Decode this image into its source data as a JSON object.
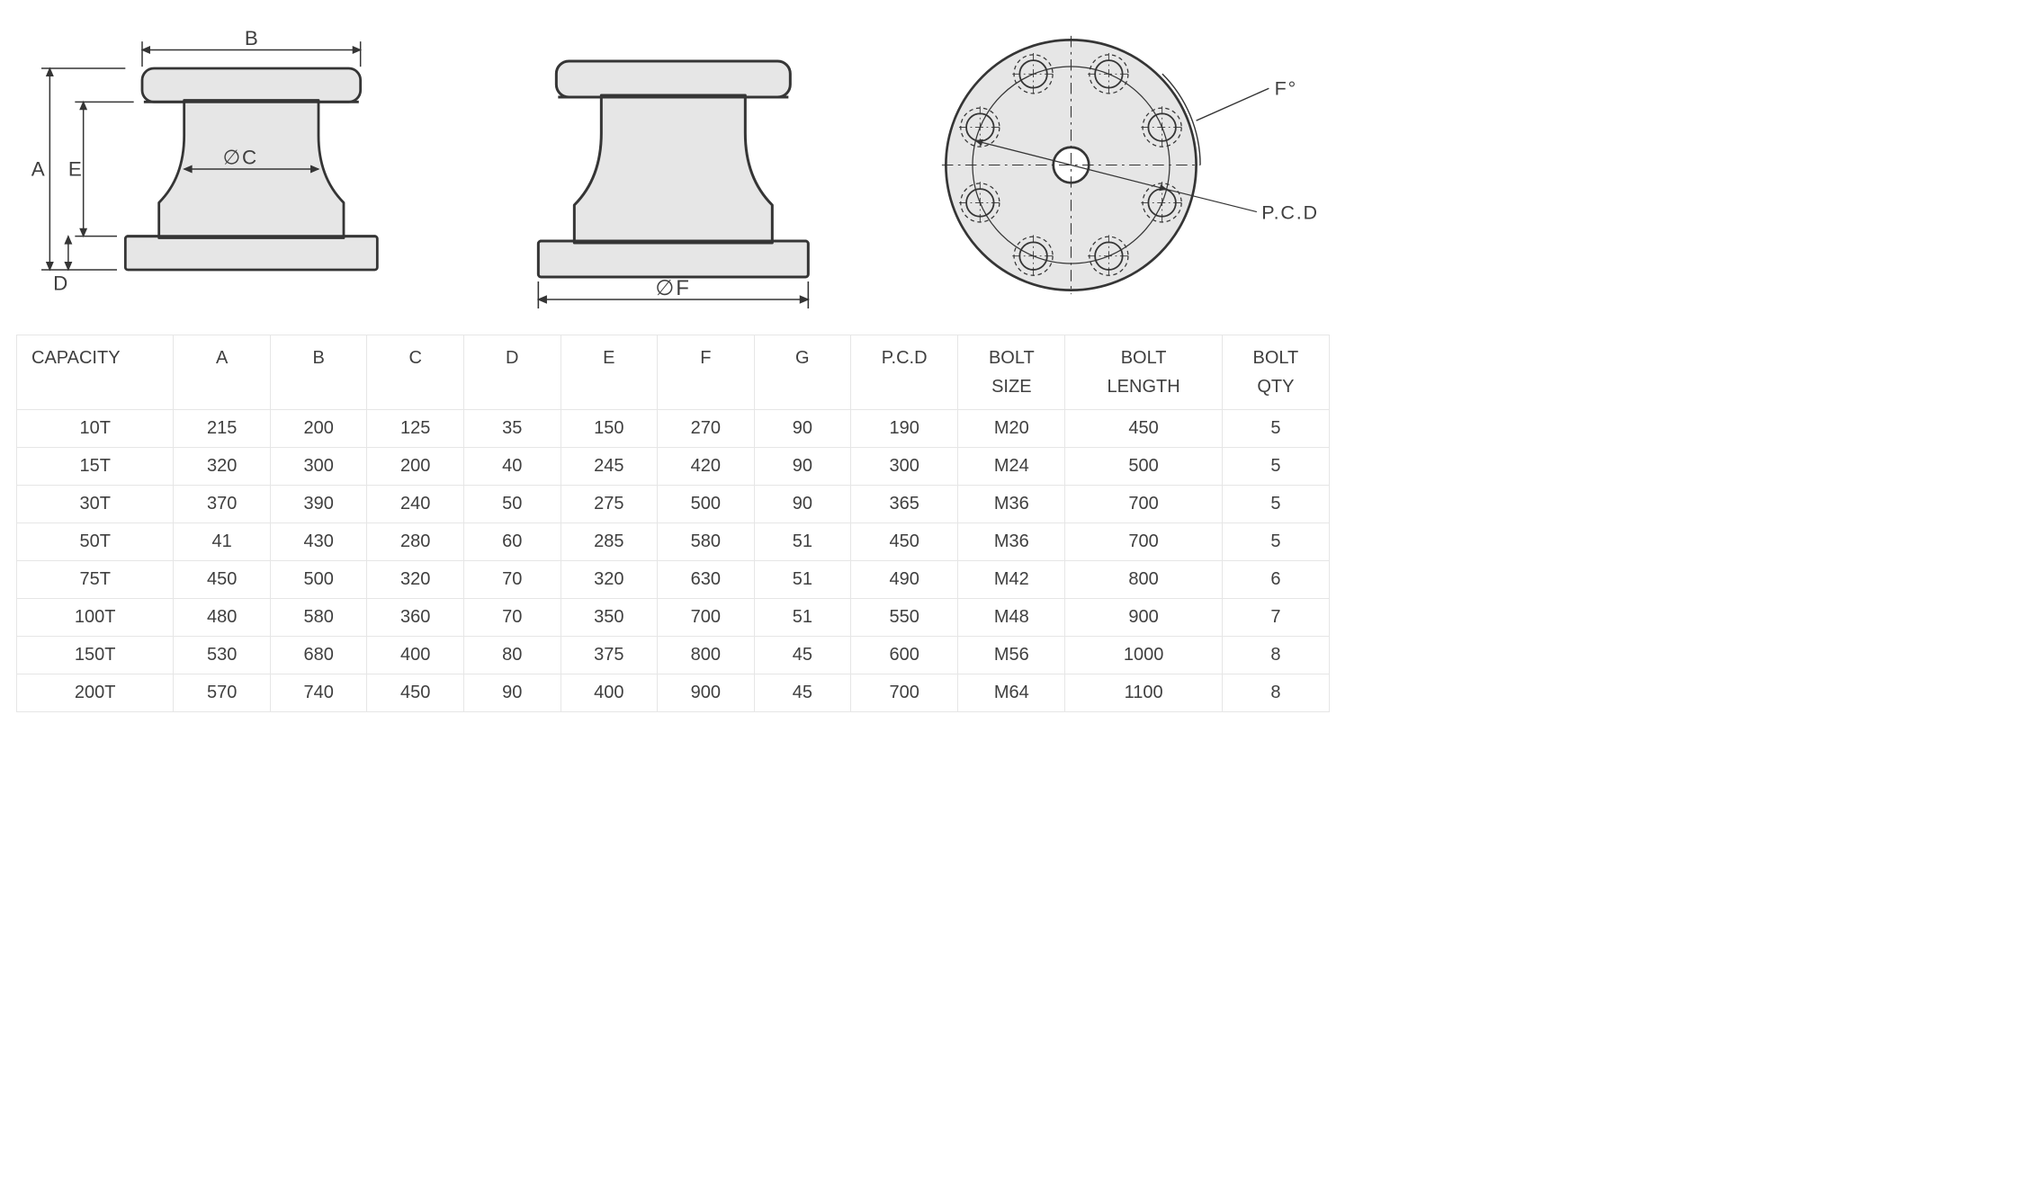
{
  "colors": {
    "stroke": "#353535",
    "fill": "#e6e6e6",
    "dim": "#353535",
    "table_border": "#e6e6e6",
    "text": "#3f3f3f",
    "bg": "#ffffff"
  },
  "stroke_width_main": 3,
  "stroke_width_dim": 1.6,
  "fig1": {
    "labels": {
      "A": "A",
      "E": "E",
      "D": "D",
      "B": "B",
      "C": "∅C"
    }
  },
  "fig2": {
    "labels": {
      "F": "∅F"
    }
  },
  "fig3": {
    "labels": {
      "F": "F°",
      "PCD": "P.C.D"
    },
    "bolt_count": 8,
    "bolt_start_angle": 22.5
  },
  "table": {
    "columns": [
      "CAPACITY",
      "A",
      "B",
      "C",
      "D",
      "E",
      "F",
      "G",
      "P.C.D",
      "BOLT SIZE",
      "BOLT LENGTH",
      "BOLT QTY"
    ],
    "rows": [
      [
        "10T",
        "215",
        "200",
        "125",
        "35",
        "150",
        "270",
        "90",
        "190",
        "M20",
        "450",
        "5"
      ],
      [
        "15T",
        "320",
        "300",
        "200",
        "40",
        "245",
        "420",
        "90",
        "300",
        "M24",
        "500",
        "5"
      ],
      [
        "30T",
        "370",
        "390",
        "240",
        "50",
        "275",
        "500",
        "90",
        "365",
        "M36",
        "700",
        "5"
      ],
      [
        "50T",
        "41",
        "430",
        "280",
        "60",
        "285",
        "580",
        "51",
        "450",
        "M36",
        "700",
        "5"
      ],
      [
        "75T",
        "450",
        "500",
        "320",
        "70",
        "320",
        "630",
        "51",
        "490",
        "M42",
        "800",
        "6"
      ],
      [
        "100T",
        "480",
        "580",
        "360",
        "70",
        "350",
        "700",
        "51",
        "550",
        "M48",
        "900",
        "7"
      ],
      [
        "150T",
        "530",
        "680",
        "400",
        "80",
        "375",
        "800",
        "45",
        "600",
        "M56",
        "1000",
        "8"
      ],
      [
        "200T",
        "570",
        "740",
        "450",
        "90",
        "400",
        "900",
        "45",
        "700",
        "M64",
        "1100",
        "8"
      ]
    ]
  }
}
